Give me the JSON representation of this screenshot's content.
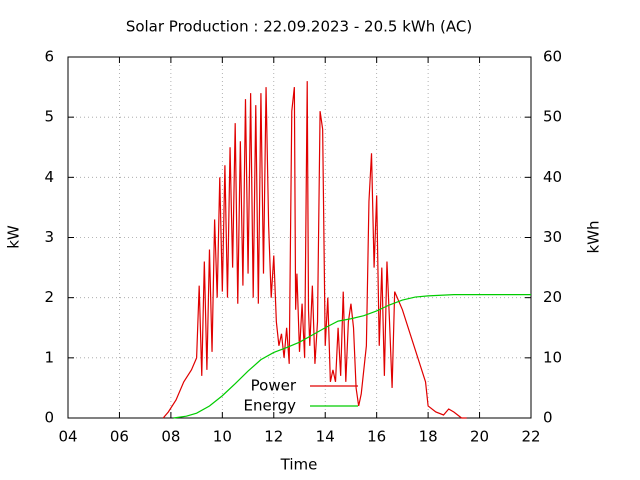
{
  "chart_data": {
    "type": "line",
    "title": "Solar Production : 22.09.2023 - 20.5 kWh (AC)",
    "xlabel": "Time",
    "ylabel": "kW",
    "y2label": "kWh",
    "xlim": [
      4,
      22
    ],
    "xticks": [
      {
        "value": 4,
        "label": "04"
      },
      {
        "value": 6,
        "label": "06"
      },
      {
        "value": 8,
        "label": "08"
      },
      {
        "value": 10,
        "label": "10"
      },
      {
        "value": 12,
        "label": "12"
      },
      {
        "value": 14,
        "label": "14"
      },
      {
        "value": 16,
        "label": "16"
      },
      {
        "value": 18,
        "label": "18"
      },
      {
        "value": 20,
        "label": "20"
      },
      {
        "value": 22,
        "label": "22"
      }
    ],
    "ylim": [
      0,
      6
    ],
    "yticks": [
      0,
      1,
      2,
      3,
      4,
      5,
      6
    ],
    "y2lim": [
      0,
      60
    ],
    "y2ticks": [
      0,
      10,
      20,
      30,
      40,
      50,
      60
    ],
    "grid": true,
    "legend": "bottom",
    "series": [
      {
        "name": "Power",
        "color": "#e00000",
        "x": [
          7.7,
          7.9,
          8.2,
          8.5,
          8.8,
          9.0,
          9.1,
          9.2,
          9.3,
          9.4,
          9.5,
          9.6,
          9.7,
          9.8,
          9.9,
          10.0,
          10.1,
          10.2,
          10.3,
          10.4,
          10.5,
          10.6,
          10.7,
          10.8,
          10.9,
          11.0,
          11.1,
          11.2,
          11.3,
          11.4,
          11.5,
          11.6,
          11.7,
          11.8,
          11.9,
          12.0,
          12.1,
          12.2,
          12.3,
          12.4,
          12.5,
          12.6,
          12.7,
          12.8,
          12.85,
          12.9,
          13.0,
          13.1,
          13.2,
          13.3,
          13.35,
          13.4,
          13.5,
          13.6,
          13.7,
          13.8,
          13.9,
          14.0,
          14.1,
          14.2,
          14.3,
          14.4,
          14.5,
          14.6,
          14.7,
          14.8,
          14.9,
          15.0,
          15.1,
          15.2,
          15.3,
          15.4,
          15.5,
          15.6,
          15.7,
          15.8,
          15.9,
          16.0,
          16.1,
          16.2,
          16.3,
          16.4,
          16.5,
          16.6,
          16.7,
          17.0,
          17.3,
          17.6,
          17.9,
          18.0,
          18.3,
          18.6,
          18.8,
          19.0,
          19.3,
          19.5
        ],
        "values": [
          0,
          0.1,
          0.3,
          0.6,
          0.8,
          1.0,
          2.2,
          0.7,
          2.6,
          0.8,
          2.8,
          1.1,
          3.3,
          2.0,
          4.0,
          2.1,
          4.2,
          2.0,
          4.5,
          2.5,
          4.9,
          1.9,
          4.6,
          2.2,
          5.3,
          2.4,
          5.4,
          2.0,
          5.2,
          1.9,
          5.4,
          2.4,
          5.5,
          3.2,
          2.0,
          2.7,
          1.6,
          1.2,
          1.4,
          1.0,
          1.5,
          0.9,
          5.1,
          5.5,
          1.8,
          2.4,
          1.1,
          1.9,
          1.0,
          5.6,
          1.8,
          1.2,
          2.2,
          0.9,
          1.6,
          5.1,
          4.8,
          1.2,
          2.0,
          0.6,
          0.8,
          0.6,
          1.5,
          0.7,
          2.1,
          0.6,
          1.6,
          1.9,
          1.5,
          0.5,
          0.2,
          0.4,
          0.8,
          1.2,
          3.6,
          4.4,
          2.5,
          3.7,
          1.2,
          2.5,
          0.7,
          2.6,
          1.6,
          0.5,
          2.1,
          1.8,
          1.4,
          1.0,
          0.6,
          0.2,
          0.1,
          0.05,
          0.15,
          0.1,
          0,
          0
        ]
      },
      {
        "name": "Energy",
        "color": "#00cc00",
        "axis": "y2",
        "x": [
          8.1,
          8.6,
          9.0,
          9.5,
          10.0,
          10.5,
          11.0,
          11.5,
          12.0,
          12.5,
          13.0,
          13.5,
          14.0,
          14.5,
          15.0,
          15.5,
          16.0,
          16.5,
          17.0,
          17.5,
          18.0,
          18.5,
          19.0,
          20.0,
          22.0
        ],
        "values": [
          0,
          0.3,
          0.8,
          2.0,
          3.7,
          5.7,
          7.8,
          9.7,
          10.9,
          11.7,
          12.6,
          13.8,
          15.0,
          16.1,
          16.5,
          17.0,
          17.8,
          18.8,
          19.6,
          20.1,
          20.3,
          20.4,
          20.5,
          20.5,
          20.5
        ]
      }
    ]
  }
}
